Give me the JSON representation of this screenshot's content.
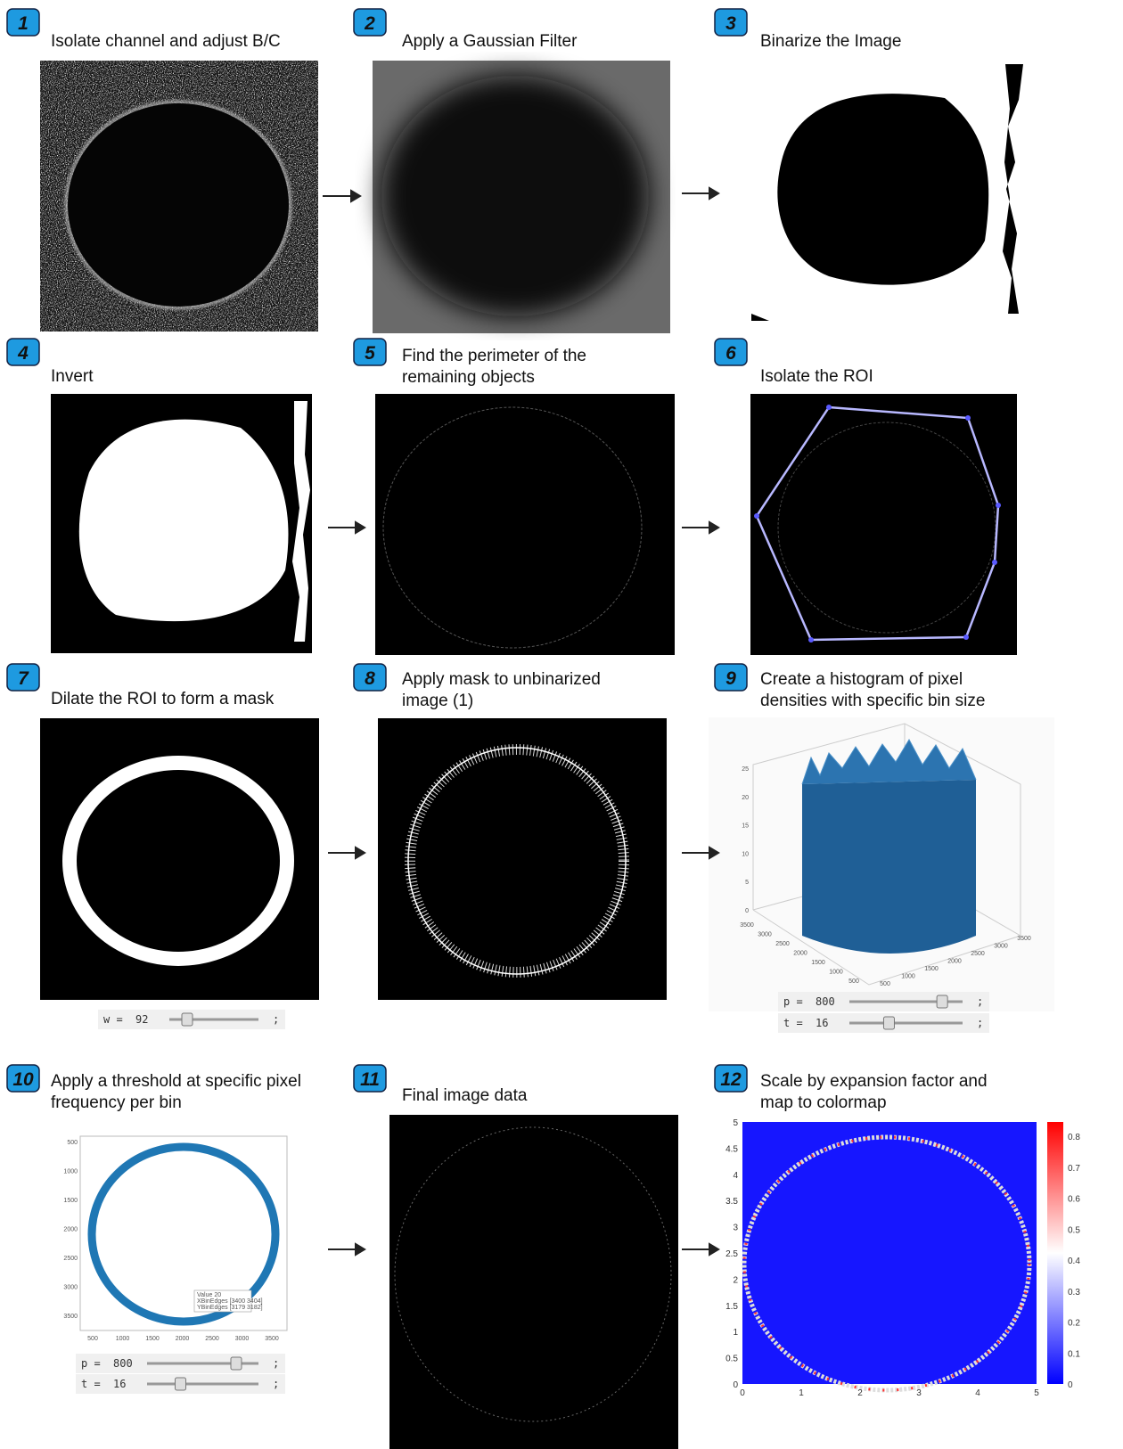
{
  "steps": [
    {
      "number": "1",
      "title": [
        "Isolate channel and adjust B/C"
      ]
    },
    {
      "number": "2",
      "title": [
        "Apply a Gaussian Filter"
      ]
    },
    {
      "number": "3",
      "title": [
        "Binarize the Image"
      ]
    },
    {
      "number": "4",
      "title": [
        "Invert"
      ]
    },
    {
      "number": "5",
      "title": [
        "Find the perimeter of the",
        "remaining objects"
      ]
    },
    {
      "number": "6",
      "title": [
        "Isolate the ROI"
      ]
    },
    {
      "number": "7",
      "title": [
        "Dilate the ROI to form a mask"
      ]
    },
    {
      "number": "8",
      "title": [
        "Apply mask to unbinarized",
        "image (1)"
      ]
    },
    {
      "number": "9",
      "title": [
        "Create a histogram of pixel",
        "densities with specific bin size"
      ]
    },
    {
      "number": "10",
      "title": [
        "Apply a threshold at specific pixel",
        "frequency per bin"
      ]
    },
    {
      "number": "11",
      "title": [
        "Final image data"
      ]
    },
    {
      "number": "12",
      "title": [
        "Scale by expansion factor and",
        "map to colormap"
      ]
    }
  ],
  "sliders": [
    {
      "label": "w =",
      "value": "92",
      "end": ";"
    },
    {
      "label": "p =",
      "value": "800",
      "end": ";"
    },
    {
      "label": "t =",
      "value": "16",
      "end": ";"
    },
    {
      "label": "p =",
      "value": "800",
      "end": ";"
    },
    {
      "label": "t =",
      "value": "16",
      "end": ";"
    }
  ],
  "histogram_3d": {
    "z_ticks": [
      0,
      5,
      10,
      15,
      20,
      25
    ],
    "left_ticks": [
      3500,
      3000,
      2500,
      2000,
      1500,
      1000,
      500
    ],
    "right_ticks": [
      500,
      1000,
      1500,
      2000,
      2500,
      3000,
      3500
    ]
  },
  "threshold_plot": {
    "y_ticks": [
      500,
      1000,
      1500,
      2000,
      2500,
      3000,
      3500
    ],
    "x_ticks": [
      500,
      1000,
      1500,
      2000,
      2500,
      3000,
      3500
    ],
    "tooltip": [
      "Value 20",
      "XBinEdges [3400 3404]",
      "YBinEdges [3179 3182]"
    ]
  },
  "colormap_plot": {
    "x_ticks": [
      0,
      1,
      2,
      3,
      4,
      5
    ],
    "y_ticks": [
      0,
      0.5,
      1,
      1.5,
      2,
      2.5,
      3,
      3.5,
      4,
      4.5,
      5
    ],
    "colorbar_ticks": [
      0,
      0.1,
      0.2,
      0.3,
      0.4,
      0.5,
      0.6,
      0.7,
      0.8
    ]
  }
}
